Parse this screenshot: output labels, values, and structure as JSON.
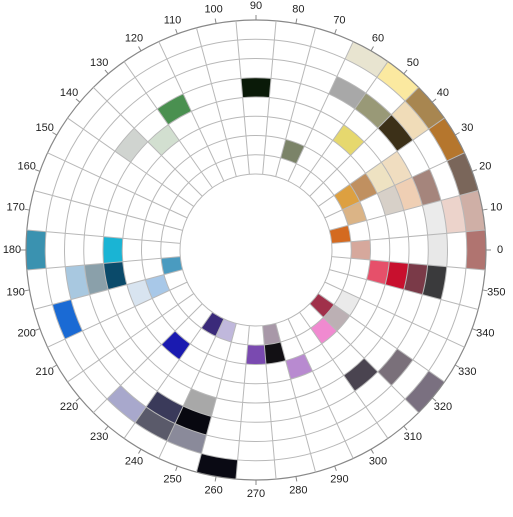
{
  "chart_data": {
    "type": "polar-color-wheel",
    "title": "",
    "angle_unit": "degrees",
    "angle_ticks": [
      0,
      10,
      20,
      30,
      40,
      50,
      60,
      70,
      80,
      90,
      100,
      110,
      120,
      130,
      140,
      150,
      160,
      170,
      180,
      190,
      200,
      210,
      220,
      230,
      240,
      250,
      260,
      270,
      280,
      290,
      300,
      310,
      320,
      330,
      340,
      350
    ],
    "angle_tick_labels": [
      "0",
      "10",
      "20",
      "30",
      "40",
      "50",
      "60",
      "70",
      "80",
      "90",
      "100",
      "110",
      "120",
      "130",
      "140",
      "150",
      "160",
      "170",
      "180",
      "190",
      "200",
      "210",
      "220",
      "230",
      "240",
      "250",
      "260",
      "270",
      "280",
      "290",
      "300",
      "310",
      "320",
      "330",
      "340",
      "350"
    ],
    "ring_levels": 8,
    "grid": true,
    "cells": [
      {
        "hue": 0,
        "ring": 1,
        "color": "#d6a89c"
      },
      {
        "hue": 0,
        "ring": 5,
        "color": "#e8e8e8"
      },
      {
        "hue": 0,
        "ring": 7,
        "color": "#b07470"
      },
      {
        "hue": 10,
        "ring": 0,
        "color": "#d46a20"
      },
      {
        "hue": 10,
        "ring": 5,
        "color": "#ebebeb"
      },
      {
        "hue": 10,
        "ring": 6,
        "color": "#ecd3cb"
      },
      {
        "hue": 10,
        "ring": 7,
        "color": "#cfafa6"
      },
      {
        "hue": 20,
        "ring": 1,
        "color": "#dbb486"
      },
      {
        "hue": 20,
        "ring": 3,
        "color": "#d7d0c8"
      },
      {
        "hue": 20,
        "ring": 4,
        "color": "#efcfb4"
      },
      {
        "hue": 20,
        "ring": 5,
        "color": "#a5857c"
      },
      {
        "hue": 20,
        "ring": 7,
        "color": "#7a665a"
      },
      {
        "hue": 30,
        "ring": 1,
        "color": "#dda040"
      },
      {
        "hue": 30,
        "ring": 2,
        "color": "#c09060"
      },
      {
        "hue": 30,
        "ring": 3,
        "color": "#eee2c2"
      },
      {
        "hue": 30,
        "ring": 4,
        "color": "#f0ddc0"
      },
      {
        "hue": 30,
        "ring": 7,
        "color": "#b5762d"
      },
      {
        "hue": 40,
        "ring": 5,
        "color": "#3c3018"
      },
      {
        "hue": 40,
        "ring": 6,
        "color": "#f0dcb8"
      },
      {
        "hue": 40,
        "ring": 7,
        "color": "#a88650"
      },
      {
        "hue": 50,
        "ring": 3,
        "color": "#e6d86e"
      },
      {
        "hue": 50,
        "ring": 5,
        "color": "#999977"
      },
      {
        "hue": 50,
        "ring": 7,
        "color": "#fbe9a0"
      },
      {
        "hue": 60,
        "ring": 7,
        "color": "#e8e4d0"
      },
      {
        "hue": 60,
        "ring": 5,
        "color": "#a8a8a8"
      },
      {
        "hue": 70,
        "ring": 1,
        "color": "#7b8368"
      },
      {
        "hue": 90,
        "ring": 4,
        "color": "#0a1a08"
      },
      {
        "hue": 120,
        "ring": 4,
        "color": "#4a9050"
      },
      {
        "hue": 130,
        "ring": 3,
        "color": "#d2dfd0"
      },
      {
        "hue": 140,
        "ring": 4,
        "color": "#d0d4d0"
      },
      {
        "hue": 180,
        "ring": 3,
        "color": "#1ab4d4"
      },
      {
        "hue": 180,
        "ring": 7,
        "color": "#3a92b0"
      },
      {
        "hue": 190,
        "ring": 0,
        "color": "#4a9bc0"
      },
      {
        "hue": 190,
        "ring": 3,
        "color": "#0a4a6a"
      },
      {
        "hue": 190,
        "ring": 4,
        "color": "#8aa0aa"
      },
      {
        "hue": 190,
        "ring": 5,
        "color": "#a8c8e0"
      },
      {
        "hue": 200,
        "ring": 1,
        "color": "#a8c8e8"
      },
      {
        "hue": 200,
        "ring": 2,
        "color": "#d8e4f0"
      },
      {
        "hue": 200,
        "ring": 6,
        "color": "#1a6ad4"
      },
      {
        "hue": 230,
        "ring": 2,
        "color": "#1a1ab0"
      },
      {
        "hue": 230,
        "ring": 6,
        "color": "#a8a8cc"
      },
      {
        "hue": 240,
        "ring": 0,
        "color": "#3a2a7a"
      },
      {
        "hue": 240,
        "ring": 5,
        "color": "#3a3a5a"
      },
      {
        "hue": 240,
        "ring": 6,
        "color": "#5a5a6a"
      },
      {
        "hue": 250,
        "ring": 0,
        "color": "#c0b8dc"
      },
      {
        "hue": 250,
        "ring": 4,
        "color": "#a8a8a8"
      },
      {
        "hue": 250,
        "ring": 5,
        "color": "#080810"
      },
      {
        "hue": 250,
        "ring": 6,
        "color": "#8a8a9a"
      },
      {
        "hue": 260,
        "ring": 7,
        "color": "#0a0a14"
      },
      {
        "hue": 270,
        "ring": 1,
        "color": "#7a4ab0"
      },
      {
        "hue": 280,
        "ring": 0,
        "color": "#a898a8"
      },
      {
        "hue": 280,
        "ring": 1,
        "color": "#121014"
      },
      {
        "hue": 290,
        "ring": 2,
        "color": "#b88ad0"
      },
      {
        "hue": 310,
        "ring": 1,
        "color": "#f08ad0"
      },
      {
        "hue": 310,
        "ring": 4,
        "color": "#4a4450"
      },
      {
        "hue": 320,
        "ring": 0,
        "color": "#a0304a"
      },
      {
        "hue": 320,
        "ring": 1,
        "color": "#bcb0b4"
      },
      {
        "hue": 320,
        "ring": 5,
        "color": "#7a707a"
      },
      {
        "hue": 320,
        "ring": 7,
        "color": "#7a7080"
      },
      {
        "hue": 330,
        "ring": 1,
        "color": "#eaeaea"
      },
      {
        "hue": 350,
        "ring": 2,
        "color": "#e6506a"
      },
      {
        "hue": 350,
        "ring": 3,
        "color": "#c8102e"
      },
      {
        "hue": 350,
        "ring": 4,
        "color": "#7a3a48"
      },
      {
        "hue": 350,
        "ring": 5,
        "color": "#3a3a3c"
      }
    ]
  }
}
